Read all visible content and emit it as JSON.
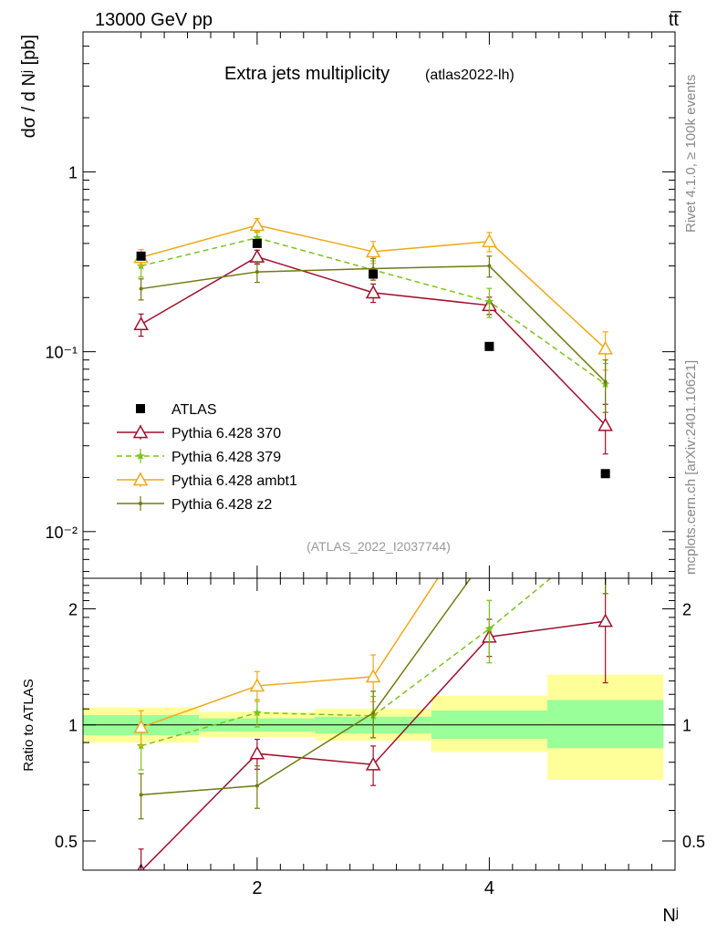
{
  "header": {
    "beam": "13000 GeV pp",
    "process": "tt̅"
  },
  "side_labels": {
    "rivet": "Rivet 4.1.0, ≥ 100k events",
    "mcplots": "mcplots.cern.ch [arXiv:2401.10621]"
  },
  "chart_data": {
    "type": "line",
    "title": "Extra jets multiplicity",
    "subtitle": "(atlas2022-lh)",
    "watermark": "(ATLAS_2022_I2037744)",
    "ylabel": "dσ / d Nʲ [pb]",
    "xlabel": "Nʲ",
    "ratio_ylabel": "Ratio to ATLAS",
    "yscale": "log",
    "xlim": [
      0.5,
      5.6
    ],
    "ylim": [
      0.0055,
      6.0
    ],
    "ratio_ylim": [
      0.42,
      2.4
    ],
    "x_ticks": [
      "2",
      "4"
    ],
    "y_ticks": [
      "1",
      "10⁻¹",
      "10⁻²"
    ],
    "ratio_ticks": [
      "0.5",
      "1",
      "2"
    ],
    "legend_position": "middle-left",
    "x": [
      1,
      2,
      3,
      4,
      5
    ],
    "bins": [
      [
        0.5,
        1.5
      ],
      [
        1.5,
        2.5
      ],
      [
        2.5,
        3.5
      ],
      [
        3.5,
        4.5
      ],
      [
        4.5,
        5.5
      ]
    ],
    "data": {
      "name": "ATLAS",
      "values": [
        0.34,
        0.4,
        0.27,
        0.107,
        0.021
      ],
      "band_green": [
        [
          0.94,
          1.06
        ],
        [
          0.96,
          1.04
        ],
        [
          0.95,
          1.05
        ],
        [
          0.92,
          1.09
        ],
        [
          0.87,
          1.16
        ]
      ],
      "band_yellow": [
        [
          0.9,
          1.11
        ],
        [
          0.93,
          1.08
        ],
        [
          0.91,
          1.1
        ],
        [
          0.85,
          1.19
        ],
        [
          0.72,
          1.35
        ]
      ],
      "color": "#000000"
    },
    "series": [
      {
        "name": "Pythia 6.428 370",
        "values": [
          0.142,
          0.337,
          0.213,
          0.181,
          0.039
        ],
        "errors": [
          0.02,
          0.03,
          0.025,
          0.02,
          0.012
        ],
        "color": "#a0102c",
        "dash": "",
        "marker": "open-triangle"
      },
      {
        "name": "Pythia 6.428 379",
        "values": [
          0.3,
          0.43,
          0.285,
          0.19,
          0.066
        ],
        "errors": [
          0.04,
          0.035,
          0.035,
          0.035,
          0.02
        ],
        "color": "#7cc21b",
        "dash": "6,4",
        "marker": "star"
      },
      {
        "name": "Pythia 6.428 ambt1",
        "values": [
          0.335,
          0.505,
          0.36,
          0.41,
          0.104
        ],
        "errors": [
          0.035,
          0.045,
          0.05,
          0.05,
          0.025
        ],
        "color": "#f0a818",
        "dash": "",
        "marker": "open-triangle"
      },
      {
        "name": "Pythia 6.428 z2",
        "values": [
          0.224,
          0.278,
          0.29,
          0.3,
          0.068
        ],
        "errors": [
          0.03,
          0.035,
          0.04,
          0.04,
          0.022
        ],
        "color": "#707a10",
        "dash": "",
        "marker": "dot"
      }
    ]
  }
}
